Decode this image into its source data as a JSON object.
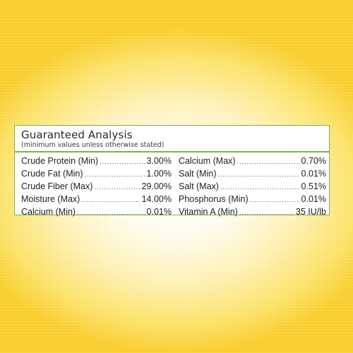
{
  "panel": {
    "title": "Guaranteed Analysis",
    "subtitle": "(minimum values unless otherwise stated)",
    "left_rows": [
      {
        "label": "Crude Protein (Min)",
        "value": "3.00%"
      },
      {
        "label": "Crude Fat (Min)",
        "value": "1.00%"
      },
      {
        "label": "Crude Fiber (Max)",
        "value": "29.00%"
      },
      {
        "label": "Moisture (Max)",
        "value": "14.00%"
      },
      {
        "label": "Calcium (Min)",
        "value": "0.01%"
      }
    ],
    "right_rows": [
      {
        "label": "Calcium (Max)",
        "value": "0.70%"
      },
      {
        "label": "Salt (Min)",
        "value": "0.01%"
      },
      {
        "label": "Salt (Max)",
        "value": "0.51%"
      },
      {
        "label": "Phosphorus (Min)",
        "value": "0.01%"
      },
      {
        "label": "Vitamin A (Min)",
        "value": "35 IU/lb"
      }
    ]
  },
  "colors": {
    "border": "#7bb34a",
    "background_edge": "#f9cf2e",
    "background_center": "#ffffff"
  }
}
